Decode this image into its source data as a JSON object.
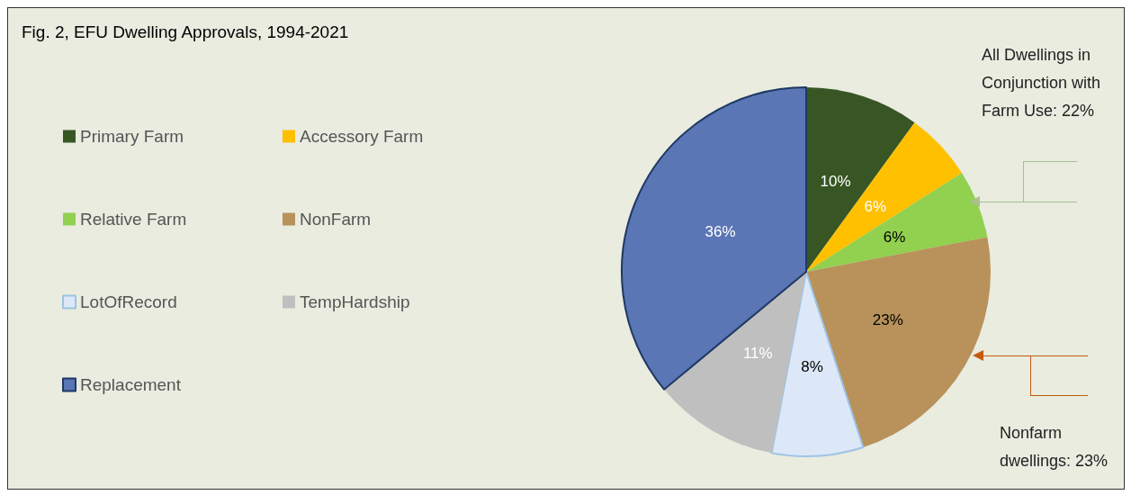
{
  "chart_data": {
    "type": "pie",
    "title": "Fig. 2, EFU Dwelling Approvals, 1994-2021",
    "categories": [
      "Primary Farm",
      "Accessory Farm",
      "Relative Farm",
      "NonFarm",
      "LotOfRecord",
      "TempHardship",
      "Replacement"
    ],
    "values": [
      10,
      6,
      6,
      23,
      8,
      11,
      36
    ],
    "colors": [
      "#375623",
      "#ffc000",
      "#92d050",
      "#b8925a",
      "#dce8f8",
      "#bfbfbf",
      "#5a76b4"
    ],
    "value_labels": [
      "10%",
      "6%",
      "6%",
      "23%",
      "8%",
      "11%",
      "36%"
    ],
    "legend": "left",
    "annotations": [
      "All Dwellings in Conjunction with Farm Use: 22%",
      "Nonfarm dwellings: 23%"
    ]
  }
}
